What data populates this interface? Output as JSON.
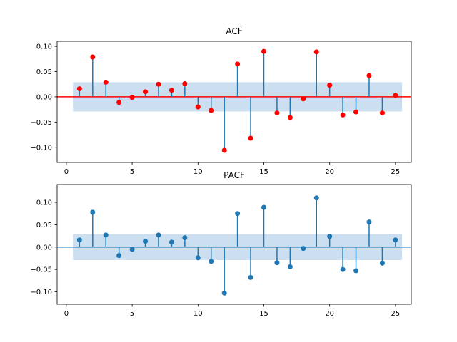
{
  "chart_data": [
    {
      "type": "stem",
      "title": "ACF",
      "lags": [
        1,
        2,
        3,
        4,
        5,
        6,
        7,
        8,
        9,
        10,
        11,
        12,
        13,
        14,
        15,
        16,
        17,
        18,
        19,
        20,
        21,
        22,
        23,
        24,
        25
      ],
      "values": [
        0.016,
        0.079,
        0.029,
        -0.011,
        -0.001,
        0.01,
        0.025,
        0.013,
        0.026,
        -0.02,
        -0.027,
        -0.106,
        0.065,
        -0.082,
        0.09,
        -0.032,
        -0.041,
        -0.004,
        0.089,
        0.023,
        -0.036,
        -0.03,
        0.042,
        -0.032,
        0.003
      ],
      "confidence_band": 0.029,
      "xlim": [
        -0.7,
        26.2
      ],
      "ylim": [
        -0.13,
        0.11
      ],
      "xticks": [
        0,
        5,
        10,
        15,
        20,
        25
      ],
      "xtick_labels": [
        "0",
        "5",
        "10",
        "15",
        "20",
        "25"
      ],
      "yticks": [
        0.1,
        0.05,
        0.0,
        -0.05,
        -0.1
      ],
      "ytick_labels": [
        "0.10",
        "0.05",
        "0.00",
        "−0.05",
        "−0.10"
      ],
      "colors": {
        "stem": "#1f77b4",
        "marker": "#ff0000",
        "zero_line": "#ff0000",
        "band": "#c6dbef"
      }
    },
    {
      "type": "stem",
      "title": "PACF",
      "lags": [
        1,
        2,
        3,
        4,
        5,
        6,
        7,
        8,
        9,
        10,
        11,
        12,
        13,
        14,
        15,
        16,
        17,
        18,
        19,
        20,
        21,
        22,
        23,
        24,
        25
      ],
      "values": [
        0.016,
        0.078,
        0.027,
        -0.019,
        -0.005,
        0.013,
        0.027,
        0.011,
        0.021,
        -0.024,
        -0.032,
        -0.103,
        0.075,
        -0.068,
        0.089,
        -0.035,
        -0.044,
        -0.003,
        0.11,
        0.024,
        -0.05,
        -0.053,
        0.056,
        -0.036,
        0.016
      ],
      "confidence_band": 0.029,
      "xlim": [
        -0.7,
        26.2
      ],
      "ylim": [
        -0.128,
        0.14
      ],
      "xticks": [
        0,
        5,
        10,
        15,
        20,
        25
      ],
      "xtick_labels": [
        "0",
        "5",
        "10",
        "15",
        "20",
        "25"
      ],
      "yticks": [
        0.1,
        0.05,
        0.0,
        -0.05,
        -0.1
      ],
      "ytick_labels": [
        "0.10",
        "0.05",
        "0.00",
        "−0.05",
        "−0.10"
      ],
      "colors": {
        "stem": "#1f77b4",
        "marker": "#1f77b4",
        "zero_line": "#1f77b4",
        "band": "#c6dbef"
      }
    }
  ]
}
